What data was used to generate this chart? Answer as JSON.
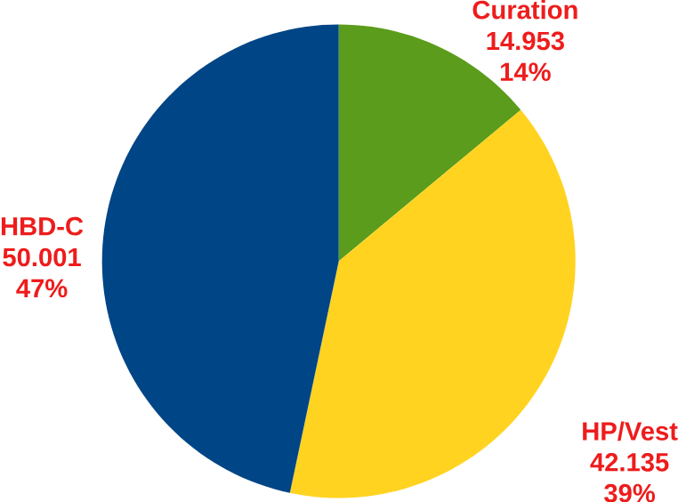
{
  "chart_data": {
    "type": "pie",
    "categories": [
      "Curation",
      "HP/Vest",
      "HBD-C"
    ],
    "values": [
      14.953,
      42.135,
      50.001
    ],
    "colors": [
      "#5b9c1c",
      "#ffd320",
      "#004586"
    ],
    "data_labels": true,
    "annotations": [
      "14%",
      "39%",
      "47%"
    ]
  }
}
